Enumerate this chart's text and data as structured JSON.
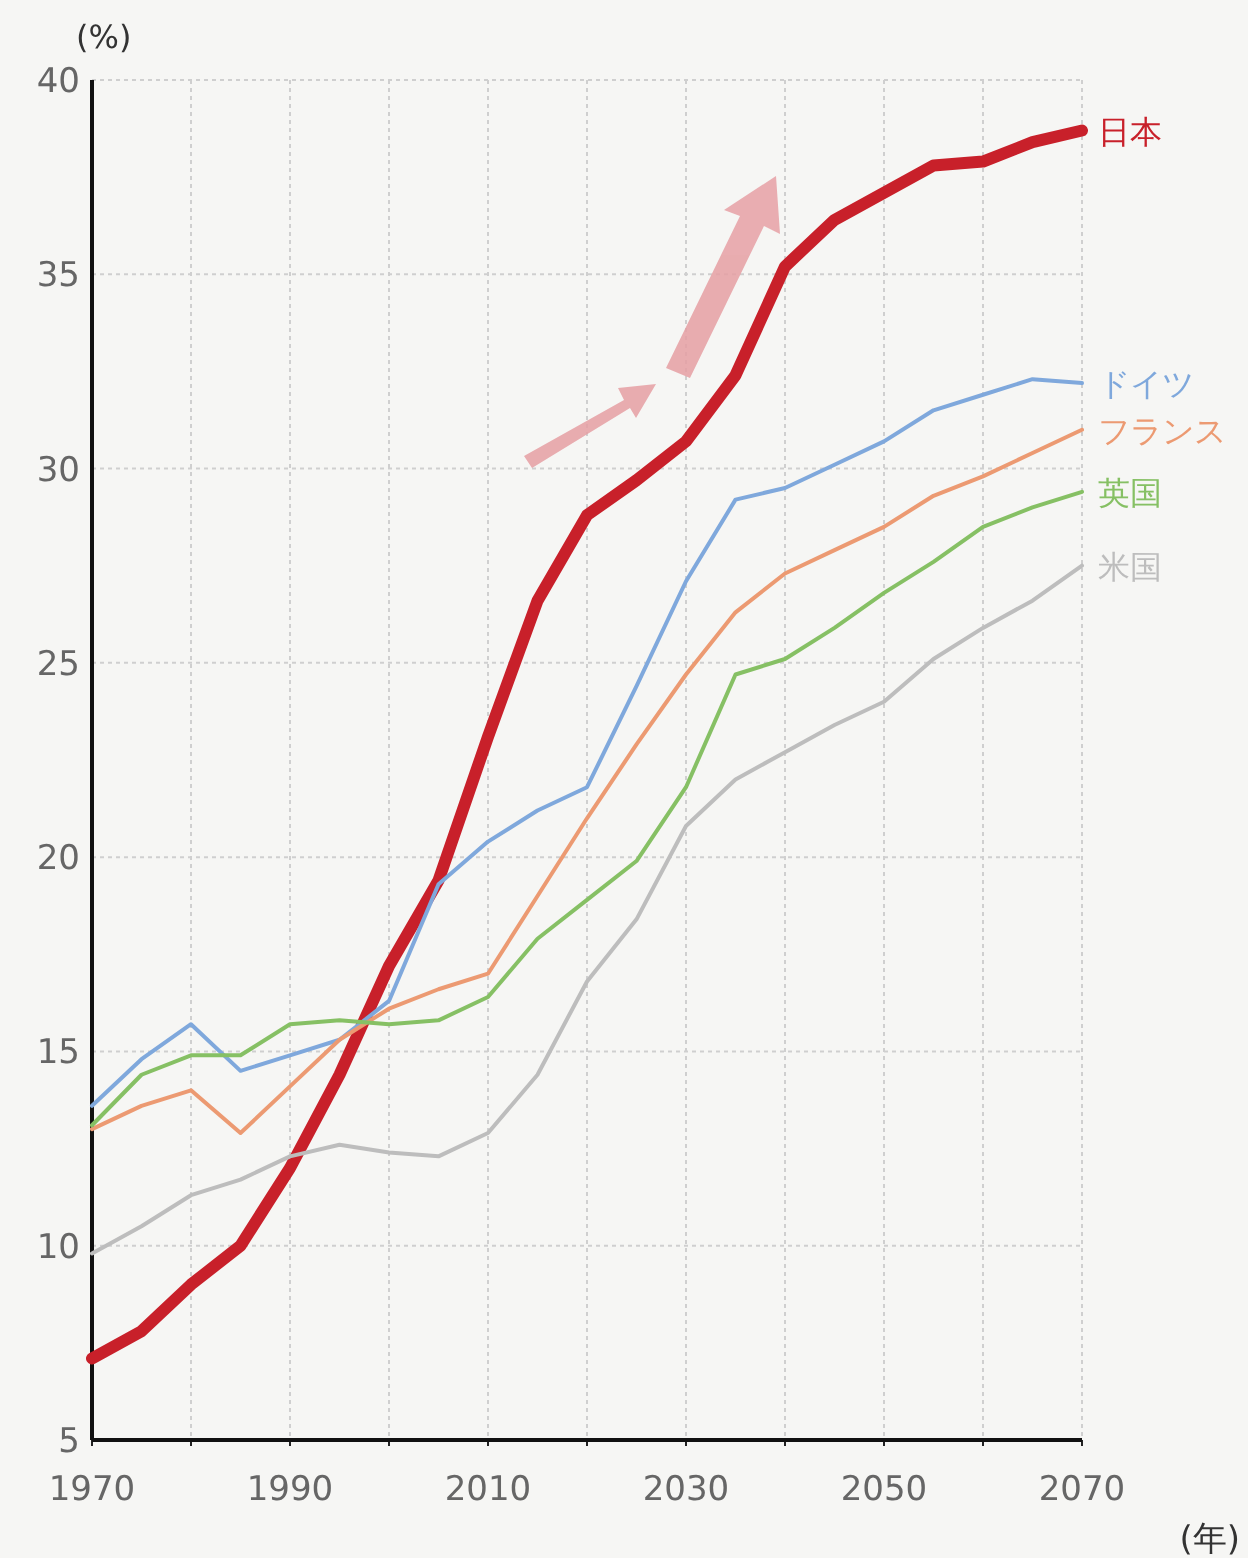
{
  "chart_data": {
    "type": "line",
    "xlabel": "(年)",
    "ylabel": "(%)",
    "x": [
      1970,
      1975,
      1980,
      1985,
      1990,
      1995,
      2000,
      2005,
      2010,
      2015,
      2020,
      2025,
      2030,
      2035,
      2040,
      2045,
      2050,
      2055,
      2060,
      2065,
      2070
    ],
    "series": [
      {
        "name": "日本",
        "color": "#c8202a",
        "values": [
          7.1,
          7.8,
          9.0,
          10.0,
          12.0,
          14.4,
          17.2,
          19.4,
          23.1,
          26.6,
          28.8,
          29.7,
          30.7,
          32.4,
          35.2,
          36.4,
          37.1,
          37.8,
          37.9,
          38.4,
          38.7
        ]
      },
      {
        "name": "ドイツ",
        "color": "#7fa8dc",
        "values": [
          13.6,
          14.8,
          15.7,
          14.5,
          14.9,
          15.3,
          16.3,
          19.3,
          20.4,
          21.2,
          21.8,
          24.4,
          27.1,
          29.2,
          29.5,
          30.1,
          30.7,
          31.5,
          31.9,
          32.3,
          32.2
        ]
      },
      {
        "name": "フランス",
        "color": "#ec9a72",
        "values": [
          13.0,
          13.6,
          14.0,
          12.9,
          14.1,
          15.3,
          16.1,
          16.6,
          17.0,
          19.0,
          21.0,
          22.9,
          24.7,
          26.3,
          27.3,
          27.9,
          28.5,
          29.3,
          29.8,
          30.4,
          31.0
        ]
      },
      {
        "name": "英国",
        "color": "#86c064",
        "values": [
          13.1,
          14.4,
          14.9,
          14.9,
          15.7,
          15.8,
          15.7,
          15.8,
          16.4,
          17.9,
          18.9,
          19.9,
          21.8,
          24.7,
          25.1,
          25.9,
          26.8,
          27.6,
          28.5,
          29.0,
          29.4
        ]
      },
      {
        "name": "米国",
        "color": "#bdbdbd",
        "values": [
          9.8,
          10.5,
          11.3,
          11.7,
          12.3,
          12.6,
          12.4,
          12.3,
          12.9,
          14.4,
          16.8,
          18.4,
          20.8,
          22.0,
          22.7,
          23.4,
          24.0,
          25.1,
          25.9,
          26.6,
          27.5
        ]
      }
    ],
    "xlim": [
      1970,
      2070
    ],
    "xticks": [
      1970,
      {
        "value": 1980,
        "label": null
      },
      1990,
      {
        "value": 2000,
        "label": null
      },
      2010,
      {
        "value": 2020,
        "label": null
      },
      2030,
      {
        "value": 2040,
        "label": null
      },
      2050,
      {
        "value": 2060,
        "label": null
      },
      2070
    ],
    "ylim": [
      5,
      40
    ],
    "yticks": [
      5,
      10,
      15,
      20,
      25,
      30,
      35,
      40
    ],
    "grid": true,
    "marker": "none",
    "line_style": "solid"
  }
}
